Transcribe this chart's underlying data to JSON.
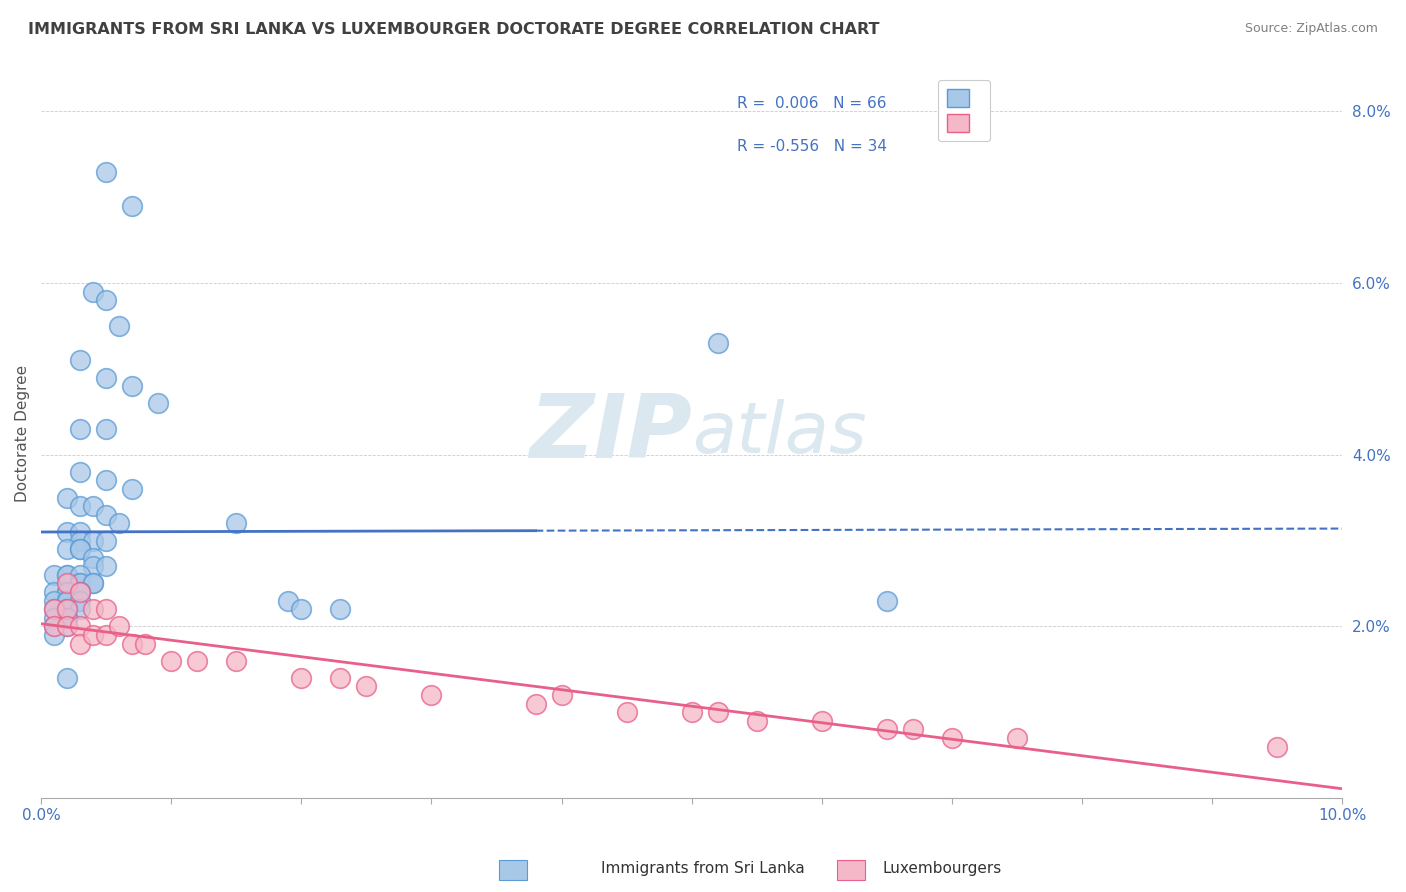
{
  "title": "IMMIGRANTS FROM SRI LANKA VS LUXEMBOURGER DOCTORATE DEGREE CORRELATION CHART",
  "source": "Source: ZipAtlas.com",
  "ylabel": "Doctorate Degree",
  "xlim": [
    0.0,
    0.1
  ],
  "ylim": [
    0.0,
    0.085
  ],
  "color_blue": "#a8c8e8",
  "color_pink": "#f4b8c8",
  "color_blue_edge": "#5b9bd5",
  "color_pink_edge": "#e8608a",
  "color_blue_line": "#4472c4",
  "color_pink_line": "#e8608a",
  "color_title": "#404040",
  "color_source": "#808080",
  "color_legend_text_r": "#4472c4",
  "color_legend_text_n": "#333333",
  "color_axis": "#4472c4",
  "watermark_color": "#dce8f0",
  "blue_dots_x": [
    0.005,
    0.007,
    0.004,
    0.005,
    0.006,
    0.003,
    0.005,
    0.007,
    0.009,
    0.003,
    0.005,
    0.003,
    0.005,
    0.007,
    0.002,
    0.003,
    0.004,
    0.005,
    0.006,
    0.002,
    0.003,
    0.003,
    0.004,
    0.005,
    0.002,
    0.003,
    0.003,
    0.004,
    0.004,
    0.005,
    0.001,
    0.002,
    0.002,
    0.003,
    0.003,
    0.003,
    0.004,
    0.004,
    0.001,
    0.002,
    0.002,
    0.003,
    0.003,
    0.001,
    0.002,
    0.002,
    0.002,
    0.003,
    0.001,
    0.002,
    0.002,
    0.003,
    0.001,
    0.002,
    0.002,
    0.001,
    0.002,
    0.001,
    0.002,
    0.015,
    0.019,
    0.02,
    0.023,
    0.052,
    0.065
  ],
  "blue_dots_y": [
    0.073,
    0.069,
    0.059,
    0.058,
    0.055,
    0.051,
    0.049,
    0.048,
    0.046,
    0.043,
    0.043,
    0.038,
    0.037,
    0.036,
    0.035,
    0.034,
    0.034,
    0.033,
    0.032,
    0.031,
    0.031,
    0.03,
    0.03,
    0.03,
    0.029,
    0.029,
    0.029,
    0.028,
    0.027,
    0.027,
    0.026,
    0.026,
    0.026,
    0.026,
    0.025,
    0.025,
    0.025,
    0.025,
    0.024,
    0.024,
    0.024,
    0.024,
    0.024,
    0.023,
    0.023,
    0.023,
    0.023,
    0.023,
    0.022,
    0.022,
    0.022,
    0.022,
    0.021,
    0.021,
    0.021,
    0.02,
    0.02,
    0.019,
    0.014,
    0.032,
    0.023,
    0.022,
    0.022,
    0.053,
    0.023
  ],
  "pink_dots_x": [
    0.001,
    0.001,
    0.002,
    0.002,
    0.002,
    0.003,
    0.003,
    0.003,
    0.004,
    0.004,
    0.005,
    0.005,
    0.006,
    0.007,
    0.008,
    0.01,
    0.012,
    0.015,
    0.02,
    0.023,
    0.025,
    0.03,
    0.038,
    0.04,
    0.045,
    0.05,
    0.052,
    0.055,
    0.06,
    0.065,
    0.067,
    0.07,
    0.075,
    0.095
  ],
  "pink_dots_y": [
    0.022,
    0.02,
    0.025,
    0.022,
    0.02,
    0.024,
    0.02,
    0.018,
    0.022,
    0.019,
    0.022,
    0.019,
    0.02,
    0.018,
    0.018,
    0.016,
    0.016,
    0.016,
    0.014,
    0.014,
    0.013,
    0.012,
    0.011,
    0.012,
    0.01,
    0.01,
    0.01,
    0.009,
    0.009,
    0.008,
    0.008,
    0.007,
    0.007,
    0.006
  ],
  "blue_line_y_intercept": 0.031,
  "blue_line_slope": 0.06,
  "pink_line_y_intercept": 0.024,
  "pink_line_slope": -0.19
}
